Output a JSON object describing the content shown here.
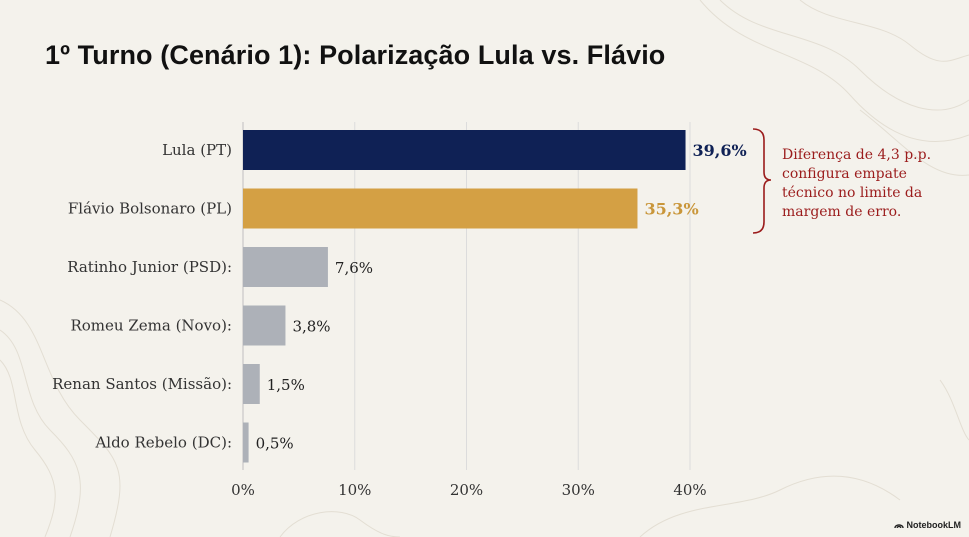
{
  "title": "1º Turno (Cenário 1): Polarização Lula vs. Flávio",
  "annotation": "Diferença de 4,3 p.p. configura empate técnico no limite da margem de erro.",
  "brand": "NotebookLM",
  "colors": {
    "lula": "#0f2155",
    "flavio": "#d4a044",
    "others": "#adb1b8",
    "annotation": "#9b1c1c",
    "background": "#f4f2ec"
  },
  "chart_data": {
    "type": "bar",
    "orientation": "horizontal",
    "categories": [
      "Lula (PT)",
      "Flávio Bolsonaro (PL)",
      "Ratinho Junior (PSD):",
      "Romeu Zema (Novo):",
      "Renan Santos (Missão):",
      "Aldo Rebelo (DC):"
    ],
    "values": [
      39.6,
      35.3,
      7.6,
      3.8,
      1.5,
      0.5
    ],
    "value_labels": [
      "39,6%",
      "35,3%",
      "7,6%",
      "3,8%",
      "1,5%",
      "0,5%"
    ],
    "bar_colors": [
      "#0f2155",
      "#d4a044",
      "#adb1b8",
      "#adb1b8",
      "#adb1b8",
      "#adb1b8"
    ],
    "label_colors": [
      "#0f2155",
      "#c9963a",
      "#222222",
      "#222222",
      "#222222",
      "#222222"
    ],
    "label_bold": [
      true,
      true,
      false,
      false,
      false,
      false
    ],
    "xlim": [
      0,
      40
    ],
    "xticks": [
      0,
      10,
      20,
      30,
      40
    ],
    "xtick_labels": [
      "0%",
      "10%",
      "20%",
      "30%",
      "40%"
    ],
    "grid": true,
    "title": "1º Turno (Cenário 1): Polarização Lula vs. Flávio",
    "xlabel": "",
    "ylabel": ""
  }
}
